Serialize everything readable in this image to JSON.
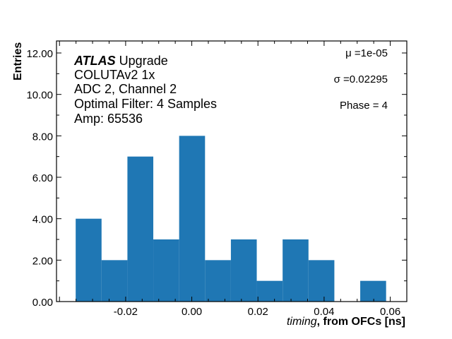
{
  "chart_data": {
    "type": "bar",
    "histogram": true,
    "bin_edges": [
      -0.0351,
      -0.02728,
      -0.01946,
      -0.01164,
      -0.00382,
      0.004,
      0.01182,
      0.01964,
      0.02746,
      0.03528,
      0.0431,
      0.05092,
      0.05874
    ],
    "values": [
      4,
      2,
      7,
      3,
      8,
      2,
      3,
      1,
      3,
      2,
      0,
      1
    ],
    "color": "#1f77b4",
    "xlim": [
      -0.0409,
      0.065
    ],
    "ylim": [
      0,
      12.58
    ],
    "xticks": [
      -0.02,
      0.0,
      0.02,
      0.04,
      0.06
    ],
    "xtick_labels": [
      "-0.02",
      "0.00",
      "0.02",
      "0.04",
      "0.06"
    ],
    "yticks": [
      0,
      2,
      4,
      6,
      8,
      10,
      12
    ],
    "ytick_labels": [
      "0.00",
      "2.00",
      "4.00",
      "6.00",
      "8.00",
      "10.00",
      "12.00"
    ],
    "xlabel_italic": "timing",
    "xlabel_bold": ", from OFCs [ns]",
    "ylabel": "Entries",
    "grid": false,
    "annotations": {
      "atlas": "ATLAS",
      "upgrade": " Upgrade",
      "lines": [
        "COLUTAv2 1x",
        "ADC 2, Channel 2",
        "Optimal Filter: 4 Samples",
        "Amp: 65536"
      ],
      "mu": "μ =1e-05",
      "sigma": "σ =0.02295",
      "phase": "Phase = 4"
    }
  }
}
